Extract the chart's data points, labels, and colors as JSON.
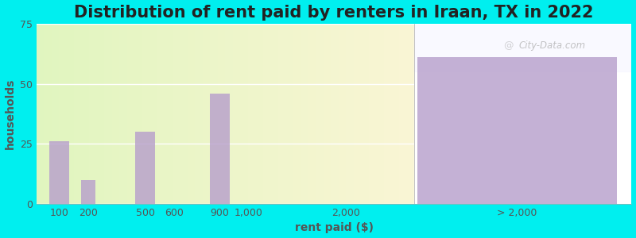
{
  "title": "Distribution of rent paid by renters in Iraan, TX in 2022",
  "xlabel": "rent paid ($)",
  "ylabel": "households",
  "background_outer": "#00EFEF",
  "bar_color": "#b8a0cc",
  "categories": [
    "100",
    "200",
    "500",
    "600",
    "900",
    "1,000",
    "2,000",
    "> 2,000"
  ],
  "bar_heights": [
    26,
    10,
    30,
    0,
    46,
    0,
    0,
    61
  ],
  "ylim": [
    0,
    75
  ],
  "yticks": [
    0,
    25,
    50,
    75
  ],
  "title_fontsize": 15,
  "axis_label_fontsize": 10,
  "tick_fontsize": 9,
  "watermark_text": "City-Data.com"
}
